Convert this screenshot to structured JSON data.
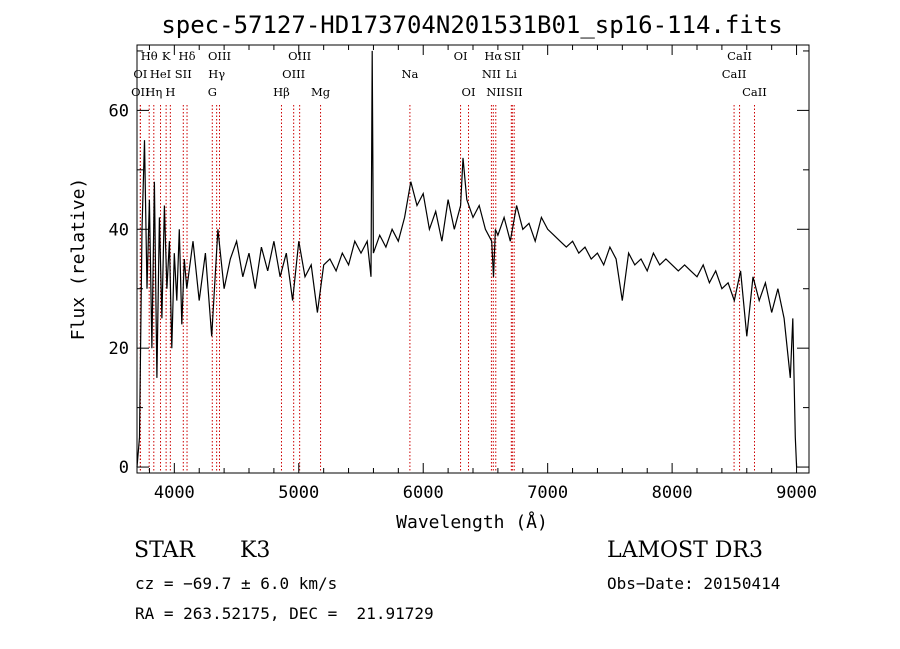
{
  "chart_data": {
    "type": "line",
    "title": "spec-57127-HD173704N201531B01_sp16-114.fits",
    "xlabel": "Wavelength (Å)",
    "ylabel": "Flux (relative)",
    "xlim": [
      3700,
      9100
    ],
    "ylim": [
      -1,
      71
    ],
    "x_ticks": [
      4000,
      5000,
      6000,
      7000,
      8000,
      9000
    ],
    "x_tick_labels": [
      "4000",
      "5000",
      "6000",
      "7000",
      "8000",
      "9000"
    ],
    "y_ticks": [
      0,
      20,
      40,
      60
    ],
    "y_tick_labels": [
      "0",
      "20",
      "40",
      "60"
    ],
    "series": [
      {
        "name": "spectrum",
        "x": [
          3700,
          3720,
          3740,
          3760,
          3780,
          3800,
          3820,
          3840,
          3860,
          3880,
          3900,
          3920,
          3940,
          3960,
          3980,
          4000,
          4020,
          4040,
          4060,
          4080,
          4100,
          4150,
          4200,
          4250,
          4300,
          4350,
          4400,
          4450,
          4500,
          4550,
          4600,
          4650,
          4700,
          4750,
          4800,
          4850,
          4900,
          4950,
          5000,
          5050,
          5100,
          5150,
          5200,
          5250,
          5300,
          5350,
          5400,
          5450,
          5500,
          5550,
          5580,
          5590,
          5600,
          5650,
          5700,
          5750,
          5800,
          5850,
          5900,
          5950,
          6000,
          6050,
          6100,
          6150,
          6200,
          6250,
          6300,
          6320,
          6350,
          6400,
          6450,
          6500,
          6550,
          6565,
          6580,
          6600,
          6650,
          6700,
          6750,
          6800,
          6850,
          6900,
          6950,
          7000,
          7050,
          7100,
          7150,
          7200,
          7250,
          7300,
          7350,
          7400,
          7450,
          7500,
          7550,
          7600,
          7650,
          7700,
          7750,
          7800,
          7850,
          7900,
          7950,
          8000,
          8050,
          8100,
          8150,
          8200,
          8250,
          8300,
          8350,
          8400,
          8450,
          8500,
          8550,
          8600,
          8650,
          8700,
          8750,
          8800,
          8850,
          8900,
          8950,
          8970,
          8990,
          9000
        ],
        "y": [
          0,
          5,
          40,
          55,
          30,
          45,
          20,
          48,
          15,
          42,
          25,
          44,
          30,
          38,
          20,
          36,
          28,
          40,
          24,
          35,
          30,
          38,
          28,
          36,
          22,
          40,
          30,
          35,
          38,
          32,
          36,
          30,
          37,
          33,
          38,
          32,
          36,
          28,
          38,
          32,
          34,
          26,
          34,
          35,
          33,
          36,
          34,
          38,
          36,
          38,
          32,
          70,
          36,
          39,
          37,
          40,
          38,
          42,
          48,
          44,
          46,
          40,
          43,
          38,
          45,
          40,
          44,
          52,
          45,
          42,
          44,
          40,
          38,
          32,
          40,
          39,
          42,
          38,
          44,
          40,
          41,
          38,
          42,
          40,
          39,
          38,
          37,
          38,
          36,
          37,
          35,
          36,
          34,
          37,
          35,
          28,
          36,
          34,
          35,
          33,
          36,
          34,
          35,
          34,
          33,
          34,
          33,
          32,
          34,
          31,
          33,
          30,
          31,
          28,
          33,
          22,
          32,
          28,
          31,
          26,
          30,
          25,
          15,
          25,
          5,
          0
        ]
      }
    ],
    "emission_lines": [
      {
        "label": "Hθ",
        "x": 3798,
        "row": 0
      },
      {
        "label": "K",
        "x": 3934,
        "row": 0
      },
      {
        "label": "Hδ",
        "x": 4102,
        "row": 0
      },
      {
        "label": "OIII",
        "x": 4363,
        "row": 0
      },
      {
        "label": "OIII",
        "x": 5007,
        "row": 0
      },
      {
        "label": "OI",
        "x": 6300,
        "row": 0
      },
      {
        "label": "Hα",
        "x": 6563,
        "row": 0
      },
      {
        "label": "SII",
        "x": 6716,
        "row": 0
      },
      {
        "label": "CaII",
        "x": 8542,
        "row": 0
      },
      {
        "label": "OI",
        "x": 3727,
        "row": 1
      },
      {
        "label": "HeI",
        "x": 3889,
        "row": 1
      },
      {
        "label": "SII",
        "x": 4072,
        "row": 1
      },
      {
        "label": "Hγ",
        "x": 4340,
        "row": 1
      },
      {
        "label": "OIII",
        "x": 4959,
        "row": 1
      },
      {
        "label": "Na",
        "x": 5893,
        "row": 1
      },
      {
        "label": "NII",
        "x": 6548,
        "row": 1
      },
      {
        "label": "Li",
        "x": 6708,
        "row": 1
      },
      {
        "label": "CaII",
        "x": 8498,
        "row": 1
      },
      {
        "label": "OII",
        "x": 3727,
        "row": 2
      },
      {
        "label": "Hη",
        "x": 3835,
        "row": 2
      },
      {
        "label": "H",
        "x": 3968,
        "row": 2
      },
      {
        "label": "G",
        "x": 4305,
        "row": 2
      },
      {
        "label": "Hβ",
        "x": 4861,
        "row": 2
      },
      {
        "label": "Mg",
        "x": 5175,
        "row": 2
      },
      {
        "label": "OI",
        "x": 6364,
        "row": 2
      },
      {
        "label": "NII",
        "x": 6583,
        "row": 2
      },
      {
        "label": "SII",
        "x": 6731,
        "row": 2
      },
      {
        "label": "CaII",
        "x": 8662,
        "row": 2
      }
    ]
  },
  "info": {
    "object_class": "STAR",
    "subclass": "K3",
    "cz": "cz = −69.7 ± 6.0 km/s",
    "coords": "RA = 263.52175, DEC =  21.91729",
    "survey": "LAMOST DR3",
    "obs_date": "Obs−Date: 20150414"
  },
  "colors": {
    "spectrum": "#000000",
    "line_marker": "#cc0000",
    "axes": "#000000"
  }
}
